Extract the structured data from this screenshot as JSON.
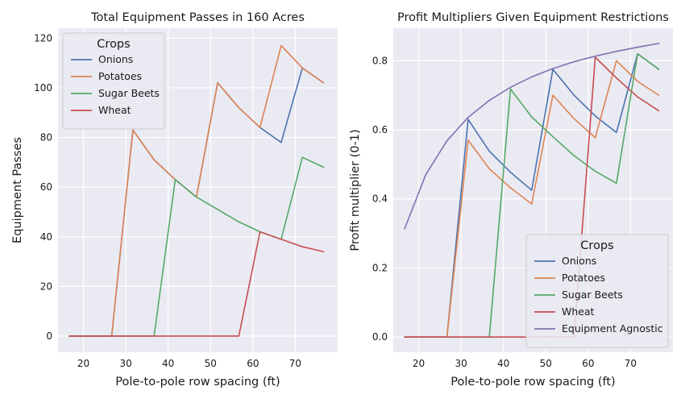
{
  "chart_data": [
    {
      "type": "line",
      "title": "Total Equipment Passes in 160 Acres",
      "xlabel": "Pole-to-pole row spacing (ft)",
      "ylabel": "Equipment Passes",
      "xlim": [
        14,
        80
      ],
      "ylim": [
        -6.5,
        124
      ],
      "xticks": [
        20,
        30,
        40,
        50,
        60,
        70
      ],
      "yticks": [
        0,
        20,
        40,
        60,
        80,
        100,
        120
      ],
      "grid": true,
      "legend": {
        "title": "Crops",
        "placement": "top-left"
      },
      "x": [
        16.67,
        21.67,
        26.67,
        31.67,
        36.67,
        41.67,
        46.67,
        51.67,
        56.67,
        61.67,
        66.67,
        71.67,
        76.67
      ],
      "series": [
        {
          "name": "Onions",
          "color": "#4c72b0",
          "values": [
            0,
            0,
            0,
            83,
            71,
            63,
            56,
            102,
            92,
            84,
            78,
            108,
            102
          ]
        },
        {
          "name": "Potatoes",
          "color": "#dd8452",
          "values": [
            0,
            0,
            0,
            83,
            71,
            63,
            56,
            102,
            92,
            84,
            117,
            108,
            102
          ]
        },
        {
          "name": "Sugar Beets",
          "color": "#55a868",
          "values": [
            0,
            0,
            0,
            0,
            0,
            63,
            56,
            51,
            46,
            42,
            39,
            72,
            68
          ]
        },
        {
          "name": "Wheat",
          "color": "#c44e52",
          "values": [
            0,
            0,
            0,
            0,
            0,
            0,
            0,
            0,
            0,
            42,
            39,
            36,
            34
          ]
        }
      ]
    },
    {
      "type": "line",
      "title": "Profit Multipliers Given Equipment Restrictions",
      "xlabel": "Pole-to-pole row spacing (ft)",
      "ylabel": "Profit multiplier (0-1)",
      "xlim": [
        14,
        80
      ],
      "ylim": [
        -0.044,
        0.894
      ],
      "xticks": [
        20,
        30,
        40,
        50,
        60,
        70
      ],
      "yticks": [
        0.0,
        0.2,
        0.4,
        0.6,
        0.8
      ],
      "grid": true,
      "legend": {
        "title": "Crops",
        "placement": "bottom-right"
      },
      "x": [
        16.67,
        21.67,
        26.67,
        31.67,
        36.67,
        41.67,
        46.67,
        51.67,
        56.67,
        61.67,
        66.67,
        71.67,
        76.67
      ],
      "series": [
        {
          "name": "Onions",
          "color": "#4c72b0",
          "values": [
            0,
            0,
            0,
            0.63,
            0.538,
            0.477,
            0.425,
            0.775,
            0.7,
            0.64,
            0.592,
            0.82,
            0.775
          ]
        },
        {
          "name": "Potatoes",
          "color": "#dd8452",
          "values": [
            0,
            0,
            0,
            0.57,
            0.487,
            0.432,
            0.385,
            0.7,
            0.632,
            0.577,
            0.8,
            0.74,
            0.7
          ]
        },
        {
          "name": "Sugar Beets",
          "color": "#55a868",
          "values": [
            0,
            0,
            0,
            0,
            0,
            0.718,
            0.637,
            0.58,
            0.525,
            0.48,
            0.445,
            0.82,
            0.775
          ]
        },
        {
          "name": "Wheat",
          "color": "#c44e52",
          "values": [
            0,
            0,
            0,
            0,
            0,
            0,
            0,
            0,
            0,
            0.81,
            0.75,
            0.695,
            0.655
          ]
        },
        {
          "name": "Equipment Agnostic",
          "color": "#8172b3",
          "values": [
            0.313,
            0.47,
            0.568,
            0.636,
            0.685,
            0.723,
            0.753,
            0.777,
            0.797,
            0.813,
            0.827,
            0.839,
            0.85
          ]
        }
      ]
    }
  ]
}
